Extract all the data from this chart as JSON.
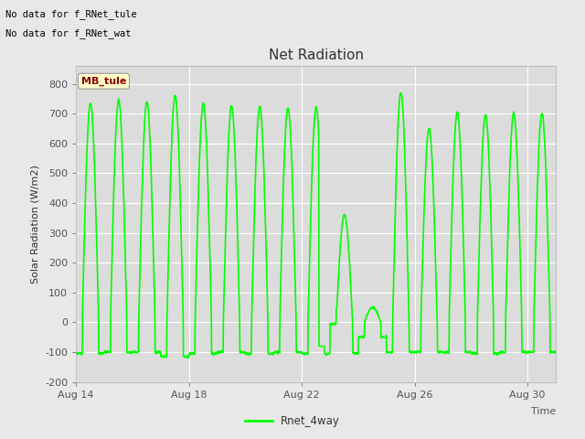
{
  "title": "Net Radiation",
  "xlabel": "Time",
  "ylabel": "Solar Radiation (W/m2)",
  "ylim": [
    -200,
    860
  ],
  "yticks": [
    -200,
    -100,
    0,
    100,
    200,
    300,
    400,
    500,
    600,
    700,
    800
  ],
  "xtick_labels": [
    "Aug 14",
    "Aug 18",
    "Aug 22",
    "Aug 26",
    "Aug 30"
  ],
  "xtick_positions": [
    0,
    4,
    8,
    12,
    16
  ],
  "xlim": [
    0,
    17
  ],
  "line_color": "#00FF00",
  "line_width": 1.2,
  "plot_bg_color": "#DCDCDC",
  "fig_bg_color": "#E8E8E8",
  "legend_label": "Rnet_4way",
  "annotation1": "No data for f_RNet_tule",
  "annotation2": "No data for f_RNet_wat",
  "tooltip_text": "MB_tule",
  "tooltip_color": "#8B0000",
  "tooltip_bg": "#FFFFCC",
  "n_days": 17,
  "points_per_day": 96,
  "daytime_start": 0.22,
  "daytime_end": 0.8,
  "peak_values": [
    735,
    745,
    740,
    760,
    735,
    725,
    725,
    720,
    720,
    360,
    50,
    770,
    650,
    705,
    695,
    700,
    700
  ],
  "night_values": [
    -105,
    -100,
    -100,
    -115,
    -105,
    -100,
    -105,
    -100,
    -105,
    -105,
    -50,
    -100,
    -100,
    -100,
    -105,
    -100,
    -100
  ]
}
